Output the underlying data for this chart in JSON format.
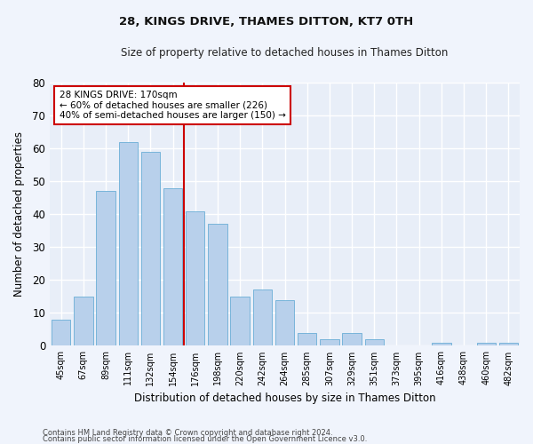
{
  "title": "28, KINGS DRIVE, THAMES DITTON, KT7 0TH",
  "subtitle": "Size of property relative to detached houses in Thames Ditton",
  "xlabel": "Distribution of detached houses by size in Thames Ditton",
  "ylabel": "Number of detached properties",
  "categories": [
    "45sqm",
    "67sqm",
    "89sqm",
    "111sqm",
    "132sqm",
    "154sqm",
    "176sqm",
    "198sqm",
    "220sqm",
    "242sqm",
    "264sqm",
    "285sqm",
    "307sqm",
    "329sqm",
    "351sqm",
    "373sqm",
    "395sqm",
    "416sqm",
    "438sqm",
    "460sqm",
    "482sqm"
  ],
  "values": [
    8,
    15,
    47,
    62,
    59,
    48,
    41,
    37,
    15,
    17,
    14,
    4,
    2,
    4,
    2,
    0,
    0,
    1,
    0,
    1,
    1
  ],
  "bar_color": "#b8d0eb",
  "bar_edge_color": "#6aaed6",
  "background_color": "#e8eef8",
  "fig_background_color": "#f0f4fc",
  "grid_color": "#ffffff",
  "vline_color": "#cc0000",
  "vline_x_index": 5,
  "annotation_line1": "28 KINGS DRIVE: 170sqm",
  "annotation_line2": "← 60% of detached houses are smaller (226)",
  "annotation_line3": "40% of semi-detached houses are larger (150) →",
  "annotation_box_color": "#ffffff",
  "annotation_box_edge_color": "#cc0000",
  "ylim": [
    0,
    80
  ],
  "yticks": [
    0,
    10,
    20,
    30,
    40,
    50,
    60,
    70,
    80
  ],
  "footer1": "Contains HM Land Registry data © Crown copyright and database right 2024.",
  "footer2": "Contains public sector information licensed under the Open Government Licence v3.0."
}
